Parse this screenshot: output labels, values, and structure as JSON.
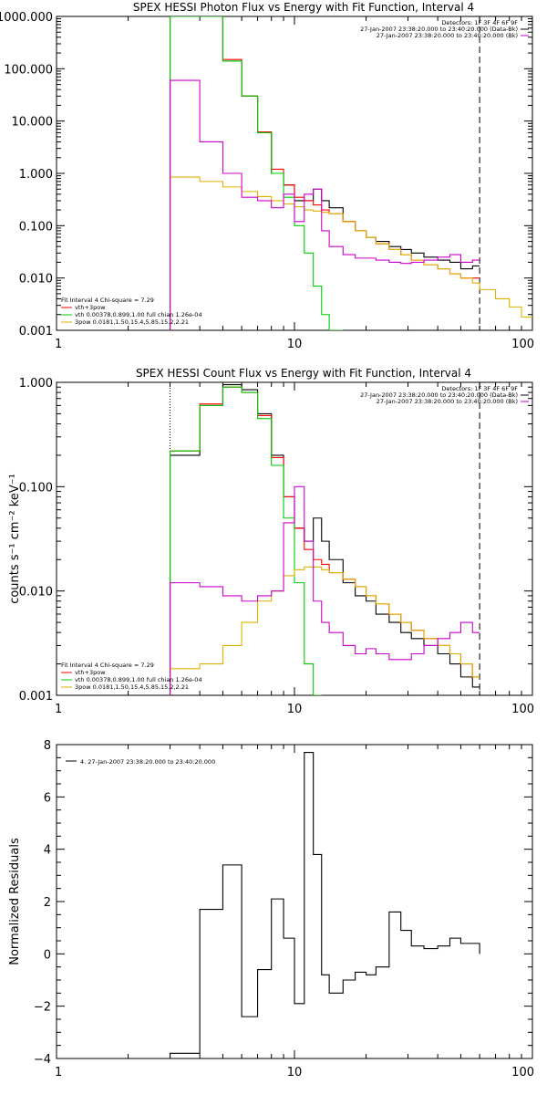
{
  "colors": {
    "background": "#ffffff",
    "axis": "#000000",
    "black": "#000000",
    "red": "#ff0000",
    "green": "#00cc00",
    "magenta": "#cc00cc",
    "orange": "#e0b000"
  },
  "chart_data": [
    {
      "type": "line",
      "title": "SPEX HESSI Photon Flux vs Energy with Fit Function, Interval 4",
      "xscale": "log",
      "yscale": "log",
      "xlim": [
        1,
        100
      ],
      "ylim": [
        0.001,
        1000
      ],
      "xticks": [
        "1",
        "10",
        "100"
      ],
      "yticks": [
        "1000.000",
        "100.000",
        "10.000",
        "1.000",
        "0.100",
        "0.010",
        "0.001"
      ],
      "vlines": {
        "dotted": 3,
        "dashed": 60
      },
      "legend_top": [
        "Detectors: 1F 3F 4F 6F 9F",
        "27-Jan-2007 23:38:20.000 to 23:40:20.000 (Data-Bk)",
        "27-Jan-2007 23:38:20.000 to 23:40:20.000 (Bk)"
      ],
      "legend_bottom": [
        "Fit Interval  4    Chi-square = 7.29",
        "vth+3pow",
        "vth 0.00378,0.899,1.00   full chian 1.26e-04",
        "3pow 0.0181,1.50,15.4,5.85,15.2,2.21"
      ],
      "edges": [
        3.0,
        4.0,
        5.0,
        6.0,
        7.0,
        8.0,
        9.0,
        10.0,
        11.0,
        12.0,
        13.0,
        14.0,
        16.0,
        18.0,
        20.0,
        22.0,
        25.0,
        28.0,
        31.0,
        35.0,
        40.0,
        45.0,
        50.0,
        56.0,
        60.0,
        70.0,
        80.0,
        90.0,
        100.0
      ],
      "series": [
        {
          "name": "Data-Bk",
          "color": "#000000",
          "values": [
            1000,
            1000,
            140,
            30,
            6,
            1.0,
            0.6,
            0.3,
            0.3,
            0.5,
            0.3,
            0.22,
            0.12,
            0.08,
            0.06,
            0.05,
            0.04,
            0.035,
            0.03,
            0.025,
            0.022,
            0.02,
            0.015,
            0.017
          ]
        },
        {
          "name": "vth+3pow",
          "color": "#ff0000",
          "values": [
            1000,
            1000,
            150,
            30,
            6.2,
            1.2,
            0.6,
            0.35,
            0.3,
            0.25,
            0.2,
            0.17,
            0.12,
            0.08,
            0.06,
            0.045,
            0.035,
            0.028,
            0.022,
            0.018,
            0.015,
            0.012,
            0.01,
            0.01
          ]
        },
        {
          "name": "vth",
          "color": "#00cc00",
          "values": [
            1000,
            1000,
            140,
            30,
            6,
            1.0,
            0.35,
            0.1,
            0.03,
            0.007,
            0.002,
            0.0008
          ]
        },
        {
          "name": "3pow",
          "color": "#e0b000",
          "values": [
            0.85,
            0.7,
            0.55,
            0.45,
            0.36,
            0.3,
            0.26,
            0.23,
            0.2,
            0.19,
            0.18,
            0.17,
            0.12,
            0.08,
            0.06,
            0.045,
            0.035,
            0.028,
            0.022,
            0.018,
            0.015,
            0.012,
            0.01,
            0.008,
            0.006,
            0.004,
            0.0028,
            0.0018
          ]
        },
        {
          "name": "Bk",
          "color": "#cc00cc",
          "values": [
            60,
            4,
            1.0,
            0.35,
            0.3,
            0.22,
            0.4,
            0.12,
            0.4,
            0.5,
            0.08,
            0.04,
            0.028,
            0.024,
            0.024,
            0.022,
            0.02,
            0.019,
            0.02,
            0.022,
            0.025,
            0.028,
            0.02,
            0.022
          ]
        }
      ]
    },
    {
      "type": "line",
      "title": "SPEX HESSI Count Flux vs Energy with Fit Function, Interval 4",
      "ylabel": "counts s⁻¹ cm⁻² keV⁻¹",
      "xscale": "log",
      "yscale": "log",
      "xlim": [
        1,
        100
      ],
      "ylim": [
        0.001,
        1.0
      ],
      "xticks": [
        "1",
        "10",
        "100"
      ],
      "yticks": [
        "1.000",
        "0.100",
        "0.010",
        "0.001"
      ],
      "vlines": {
        "dotted": 3,
        "dashed": 60
      },
      "legend_top": [
        "Detectors: 1F 3F 4F 6F 9F",
        "27-Jan-2007 23:38:20.000 to 23:40:20.000 (Data-Bk)",
        "27-Jan-2007 23:38:20.000 to 23:40:20.000 (Bk)"
      ],
      "legend_bottom": [
        "Fit Interval  4    Chi-square = 7.29",
        "vth+3pow",
        "vth 0.00378,0.899,1.00   full chian 1.26e-04",
        "3pow 0.0181,1.50,15.4,5.85,15.2,2.21"
      ],
      "edges": [
        3.0,
        4.0,
        5.0,
        6.0,
        7.0,
        8.0,
        9.0,
        10.0,
        11.0,
        12.0,
        13.0,
        14.0,
        16.0,
        18.0,
        20.0,
        22.0,
        25.0,
        28.0,
        31.0,
        35.0,
        40.0,
        45.0,
        50.0,
        56.0,
        60.0
      ],
      "series": [
        {
          "name": "Data-Bk",
          "color": "#000000",
          "values": [
            0.2,
            0.6,
            0.95,
            0.85,
            0.5,
            0.2,
            0.08,
            0.04,
            0.03,
            0.05,
            0.03,
            0.02,
            0.012,
            0.009,
            0.008,
            0.006,
            0.005,
            0.004,
            0.0035,
            0.003,
            0.0025,
            0.002,
            0.0015,
            0.0012
          ]
        },
        {
          "name": "vth+3pow",
          "color": "#ff0000",
          "values": [
            0.22,
            0.62,
            0.9,
            0.8,
            0.48,
            0.19,
            0.08,
            0.04,
            0.025,
            0.02,
            0.018,
            0.015,
            0.013,
            0.011,
            0.009,
            0.0075,
            0.006,
            0.005,
            0.0042,
            0.0035,
            0.003,
            0.0025,
            0.002,
            0.0015
          ]
        },
        {
          "name": "vth",
          "color": "#00cc00",
          "values": [
            0.22,
            0.6,
            0.9,
            0.8,
            0.45,
            0.16,
            0.05,
            0.012,
            0.002,
            0.0008
          ]
        },
        {
          "name": "3pow",
          "color": "#e0b000",
          "values": [
            0.0018,
            0.002,
            0.003,
            0.005,
            0.008,
            0.01,
            0.014,
            0.016,
            0.017,
            0.017,
            0.016,
            0.015,
            0.013,
            0.011,
            0.009,
            0.0075,
            0.006,
            0.005,
            0.0042,
            0.0035,
            0.003,
            0.0025,
            0.002,
            0.0015,
            0.0012,
            0.0009
          ]
        },
        {
          "name": "Bk",
          "color": "#cc00cc",
          "values": [
            0.012,
            0.011,
            0.009,
            0.008,
            0.009,
            0.01,
            0.045,
            0.1,
            0.03,
            0.008,
            0.005,
            0.004,
            0.003,
            0.0025,
            0.0028,
            0.0025,
            0.0022,
            0.0022,
            0.0025,
            0.003,
            0.0035,
            0.004,
            0.005,
            0.004
          ]
        }
      ]
    },
    {
      "type": "line",
      "ylabel": "Normalized Residuals",
      "xscale": "log",
      "xlim": [
        1,
        100
      ],
      "ylim": [
        -4,
        8
      ],
      "xticks": [
        "1",
        "10",
        "100"
      ],
      "yticks": [
        "8",
        "6",
        "4",
        "2",
        "0",
        "−2",
        "−4"
      ],
      "legend_top": [
        "4. 27-Jan-2007 23:38:20.000 to 23:40:20.000"
      ],
      "edges": [
        3.0,
        4.0,
        5.0,
        6.0,
        7.0,
        8.0,
        9.0,
        10.0,
        11.0,
        12.0,
        13.0,
        14.0,
        16.0,
        18.0,
        20.0,
        22.0,
        25.0,
        28.0,
        31.0,
        35.0,
        40.0,
        45.0,
        50.0,
        56.0,
        60.0
      ],
      "series": [
        {
          "name": "4. 27-Jan-2007 23:38:20.000 to 23:40:20.000",
          "color": "#000000",
          "values": [
            -3.8,
            1.7,
            3.4,
            -2.4,
            -0.6,
            2.1,
            0.6,
            -1.9,
            7.7,
            3.8,
            -0.8,
            -1.5,
            -1.0,
            -0.7,
            -0.8,
            -0.5,
            1.6,
            0.9,
            0.3,
            0.2,
            0.3,
            0.6,
            0.4,
            0.4
          ]
        }
      ]
    }
  ]
}
